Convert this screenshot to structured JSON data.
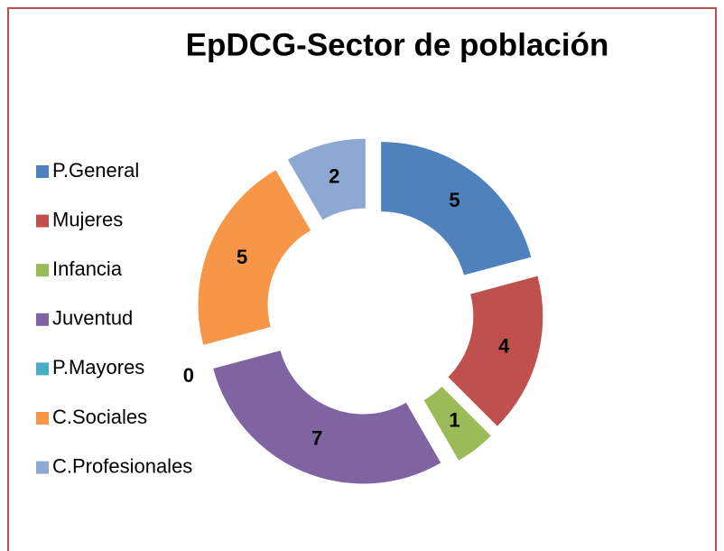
{
  "chart_data": {
    "type": "donut",
    "title": "EpDCG-Sector de población",
    "categories": [
      "P.General",
      "Mujeres",
      "Infancia",
      "Juventud",
      "P.Mayores",
      "C.Sociales",
      "C.Profesionales"
    ],
    "values": [
      5,
      4,
      1,
      7,
      0,
      5,
      2
    ],
    "colors": [
      "#4f81bd",
      "#c0504d",
      "#9bbb59",
      "#8064a2",
      "#4bacc6",
      "#f79646",
      "#8ea8d4"
    ],
    "legend": "left",
    "exploded": true
  }
}
